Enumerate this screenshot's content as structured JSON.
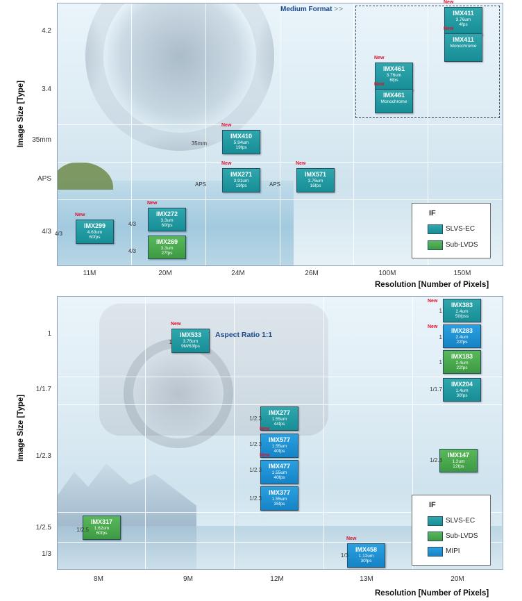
{
  "chart_data": [
    {
      "type": "scatter",
      "xlabel": "Resolution  [Number of Pixels]",
      "ylabel": "Image Size [Type]",
      "categories": [
        "11M",
        "20M",
        "24M",
        "26M",
        "100M",
        "150M"
      ],
      "y_categories": [
        "4/3",
        "APS",
        "35mm",
        "3.4",
        "4.2"
      ],
      "region_label": "Medium Format",
      "region_arrows": ">>",
      "legend_title": "IF",
      "legend": [
        {
          "name": "SLVS-EC",
          "color": "#1f9aa1"
        },
        {
          "name": "Sub-LVDS",
          "color": "#4cab4f"
        }
      ],
      "points": [
        {
          "name": "IMX411",
          "spec": "3.76um",
          "fps": "4fps",
          "x": "150M",
          "y": "4.2",
          "slot": "upper",
          "interface": "SLVS-EC",
          "new": "New"
        },
        {
          "name": "IMX411",
          "spec": "Monochrome",
          "fps": "",
          "x": "150M",
          "y": "4.2",
          "slot": "lower",
          "interface": "SLVS-EC",
          "new": "New"
        },
        {
          "name": "IMX461",
          "spec": "3.76um",
          "fps": "6fps",
          "x": "100M",
          "y": "3.4",
          "slot": "upper",
          "interface": "SLVS-EC",
          "new": "New"
        },
        {
          "name": "IMX461",
          "spec": "Monochrome",
          "fps": "",
          "x": "100M",
          "y": "3.4",
          "slot": "lower",
          "interface": "SLVS-EC",
          "new": "New"
        },
        {
          "name": "IMX410",
          "spec": "5.94um",
          "fps": "19fps",
          "x": "24M",
          "y": "35mm",
          "slot": "center",
          "interface": "SLVS-EC",
          "new": "New",
          "size_label": "35mm"
        },
        {
          "name": "IMX271",
          "spec": "3.91um",
          "fps": "19fps",
          "x": "24M",
          "y": "APS",
          "slot": "center",
          "interface": "SLVS-EC",
          "new": "New",
          "size_label": "APS"
        },
        {
          "name": "IMX571",
          "spec": "3.76um",
          "fps": "16fps",
          "x": "26M",
          "y": "APS",
          "slot": "center",
          "interface": "SLVS-EC",
          "new": "New",
          "size_label": "APS"
        },
        {
          "name": "IMX299",
          "spec": "4.63um",
          "fps": "60fps",
          "x": "11M",
          "y": "4/3",
          "slot": "center",
          "interface": "SLVS-EC",
          "new": "New",
          "size_label": "4/3"
        },
        {
          "name": "IMX272",
          "spec": "3.3um",
          "fps": "60fps",
          "x": "20M",
          "y": "4/3",
          "slot": "upper",
          "interface": "SLVS-EC",
          "new": "New",
          "size_label": "4/3"
        },
        {
          "name": "IMX269",
          "spec": "3.3um",
          "fps": "27fps",
          "x": "20M",
          "y": "4/3",
          "slot": "lower",
          "interface": "Sub-LVDS",
          "new": "",
          "size_label": "4/3"
        }
      ]
    },
    {
      "type": "scatter",
      "xlabel": "Resolution  [Number of Pixels]",
      "ylabel": "Image Size [Type]",
      "categories": [
        "8M",
        "9M",
        "12M",
        "13M",
        "20M"
      ],
      "y_categories": [
        "1/3",
        "1/2.5",
        "1/2.3",
        "1/1.7",
        "1"
      ],
      "annotation": "Aspect Ratio 1:1",
      "legend_title": "IF",
      "legend": [
        {
          "name": "SLVS-EC",
          "color": "#1f9aa1"
        },
        {
          "name": "Sub-LVDS",
          "color": "#4cab4f"
        },
        {
          "name": "MIPI",
          "color": "#1f90d4"
        }
      ],
      "points": [
        {
          "name": "IMX533",
          "spec": "3.76um",
          "fps": "9M/63fps",
          "x": "9M",
          "y": "1",
          "interface": "SLVS-EC",
          "new": "New",
          "size_label": "1"
        },
        {
          "name": "IMX383",
          "spec": "2.4um",
          "fps": "50fpss",
          "x": "20M",
          "y": "1",
          "interface": "SLVS-EC",
          "new": "New",
          "size_label": "1"
        },
        {
          "name": "IMX283",
          "spec": "2.4um",
          "fps": "22fps",
          "x": "20M",
          "y": "1",
          "interface": "MIPI",
          "new": "New",
          "size_label": "1"
        },
        {
          "name": "IMX183",
          "spec": "2.4um",
          "fps": "22fps",
          "x": "20M",
          "y": "1",
          "interface": "Sub-LVDS",
          "new": "",
          "size_label": "1"
        },
        {
          "name": "IMX204",
          "spec": "1.4um",
          "fps": "30fps",
          "x": "20M",
          "y": "1/1.7",
          "interface": "SLVS-EC",
          "new": "",
          "size_label": "1/1.7"
        },
        {
          "name": "IMX277",
          "spec": "1.55um",
          "fps": "44fps",
          "x": "12M",
          "y": "1/2.3",
          "interface": "SLVS-EC",
          "new": "",
          "size_label": "1/2.3"
        },
        {
          "name": "IMX577",
          "spec": "1.55um",
          "fps": "40fps",
          "x": "12M",
          "y": "1/2.3",
          "interface": "MIPI",
          "new": "New",
          "size_label": "1/2.3"
        },
        {
          "name": "IMX477",
          "spec": "1.55um",
          "fps": "40fps",
          "x": "12M",
          "y": "1/2.3",
          "interface": "MIPI",
          "new": "New",
          "size_label": "1/2.3"
        },
        {
          "name": "IMX377",
          "spec": "1.55um",
          "fps": "35fps",
          "x": "12M",
          "y": "1/2.3",
          "interface": "MIPI",
          "new": "",
          "size_label": "1/2.3"
        },
        {
          "name": "IMX147",
          "spec": "1.2um",
          "fps": "22fps",
          "x": "20M",
          "y": "1/2.3",
          "interface": "Sub-LVDS",
          "new": "",
          "size_label": "1/2.3"
        },
        {
          "name": "IMX317",
          "spec": "1.62um",
          "fps": "60fps",
          "x": "8M",
          "y": "1/2.5",
          "interface": "Sub-LVDS",
          "new": "",
          "size_label": "1/2.5"
        },
        {
          "name": "IMX458",
          "spec": "1.12um",
          "fps": "30fps",
          "x": "13M",
          "y": "1/3",
          "interface": "MIPI",
          "new": "New",
          "size_label": "1/3"
        }
      ]
    }
  ]
}
